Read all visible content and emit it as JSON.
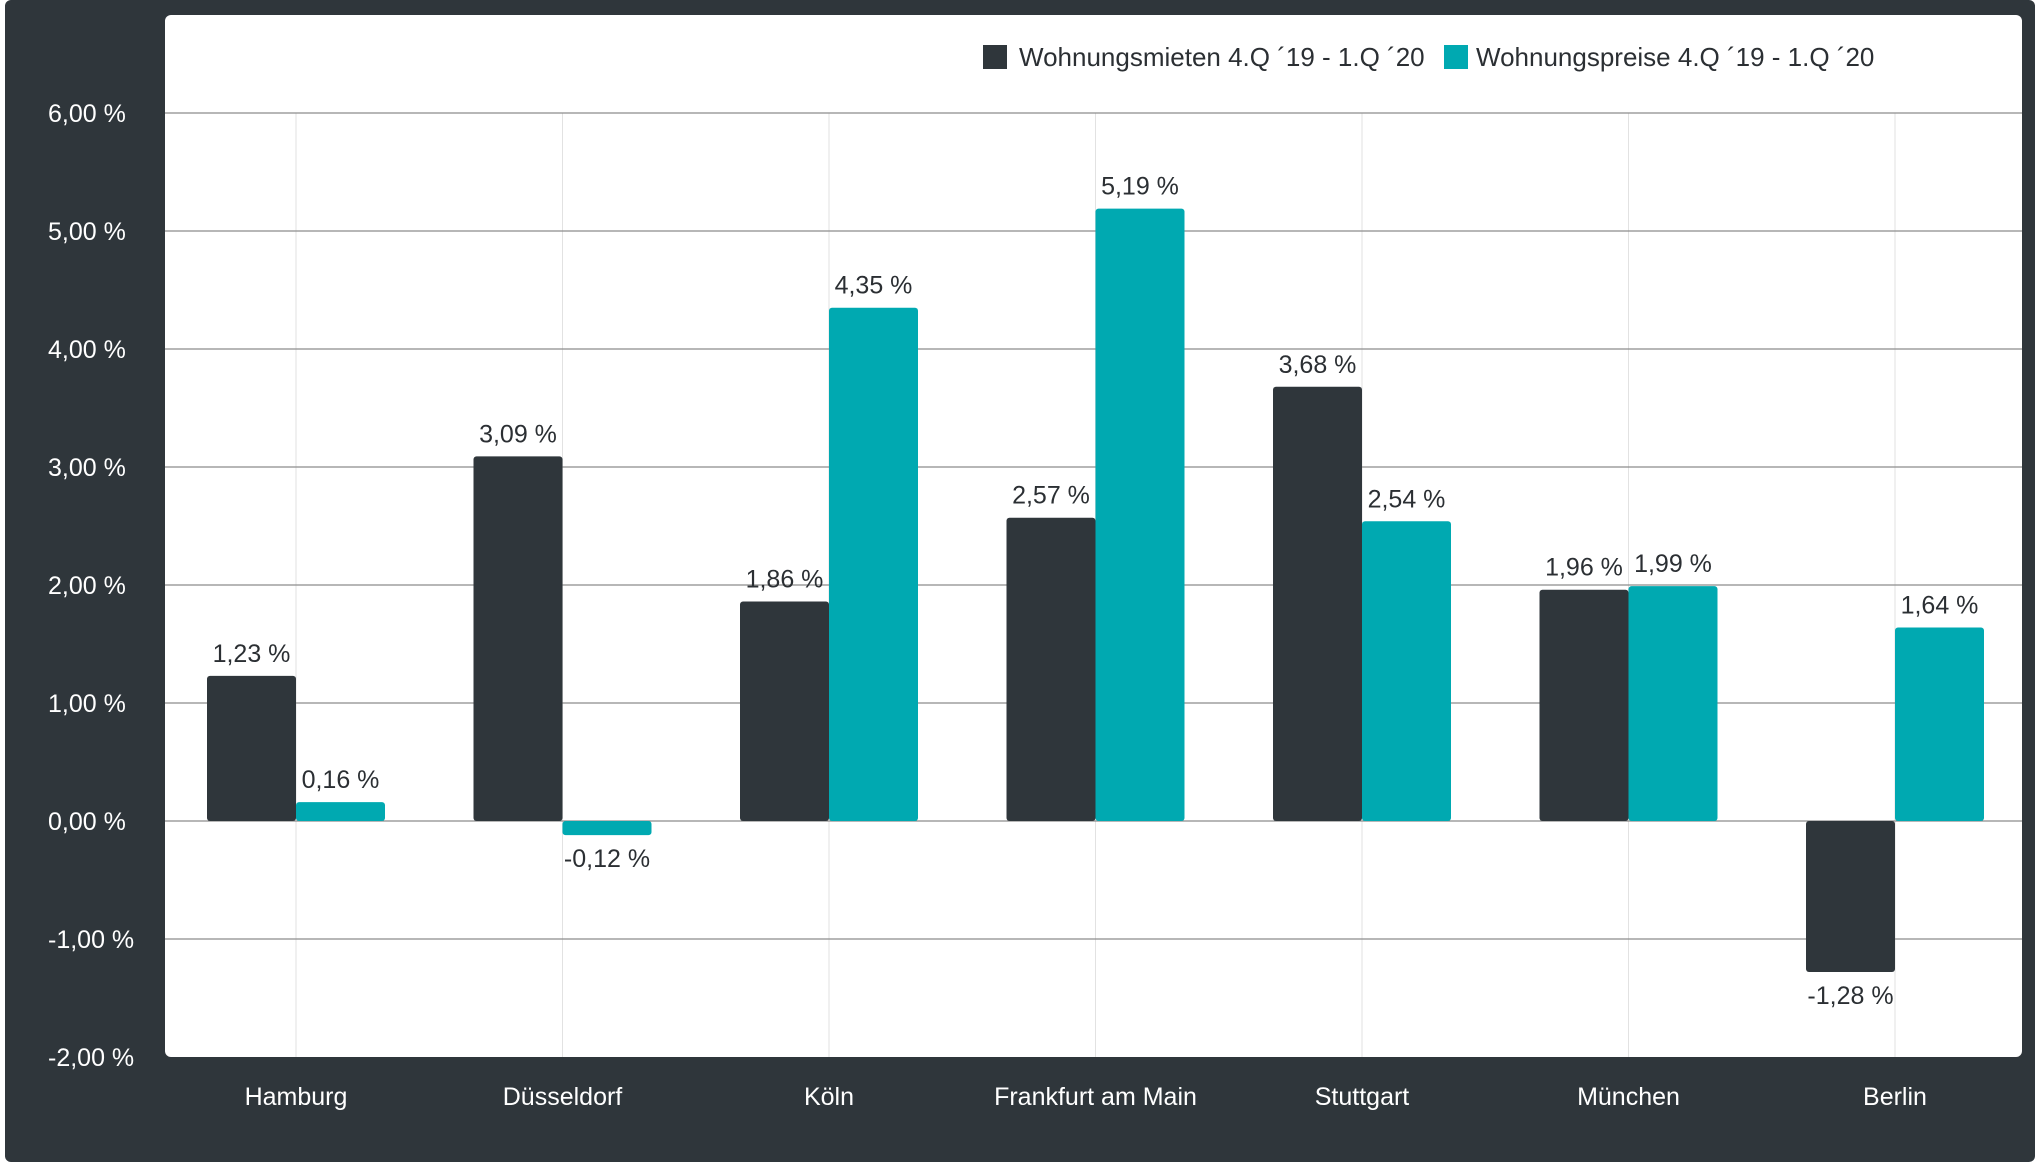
{
  "chart_data": {
    "type": "bar",
    "categories": [
      "Hamburg",
      "Düsseldorf",
      "Köln",
      "Frankfurt am Main",
      "Stuttgart",
      "München",
      "Berlin"
    ],
    "series": [
      {
        "name": "Wohnungsmieten 4.Q ´19 - 1.Q ´20",
        "color": "#2f363b",
        "values": [
          1.23,
          3.09,
          1.86,
          2.57,
          3.68,
          1.96,
          -1.28
        ],
        "labels": [
          "1,23 %",
          "3,09 %",
          "1,86 %",
          "2,57 %",
          "3,68 %",
          "1,96 %",
          "-1,28 %"
        ]
      },
      {
        "name": "Wohnungspreise 4.Q ´19 - 1.Q ´20",
        "color": "#00a9b1",
        "values": [
          0.16,
          -0.12,
          4.35,
          5.19,
          2.54,
          1.99,
          1.64
        ],
        "labels": [
          "0,16 %",
          "-0,12 %",
          "4,35 %",
          "5,19 %",
          "2,54 %",
          "1,99 %",
          "1,64 %"
        ]
      }
    ],
    "ylim": [
      -2,
      6
    ],
    "yticks": [
      6,
      5,
      4,
      3,
      2,
      1,
      0,
      -1,
      -2
    ],
    "ytick_labels": [
      "6,00 %",
      "5,00 %",
      "4,00 %",
      "3,00 %",
      "2,00 %",
      "1,00 %",
      "0,00 %",
      "-1,00 %",
      "-2,00 %"
    ],
    "xlabel": "",
    "ylabel": "",
    "grid": true,
    "legend": "top-right"
  }
}
